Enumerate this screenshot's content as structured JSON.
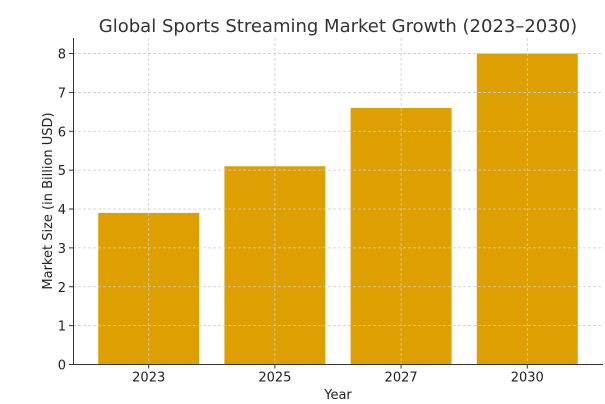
{
  "chart_data": {
    "type": "bar",
    "title": "Global Sports Streaming Market Growth (2023–2030)",
    "xlabel": "Year",
    "ylabel": "Market Size (in Billion USD)",
    "categories": [
      "2023",
      "2025",
      "2027",
      "2030"
    ],
    "values": [
      3.9,
      5.1,
      6.6,
      8.0
    ],
    "ylim": [
      0,
      8.4
    ],
    "yticks": [
      "0",
      "1",
      "2",
      "3",
      "4",
      "5",
      "6",
      "7",
      "8"
    ],
    "grid": true,
    "bar_color": "#DE9F00",
    "legend": null
  }
}
